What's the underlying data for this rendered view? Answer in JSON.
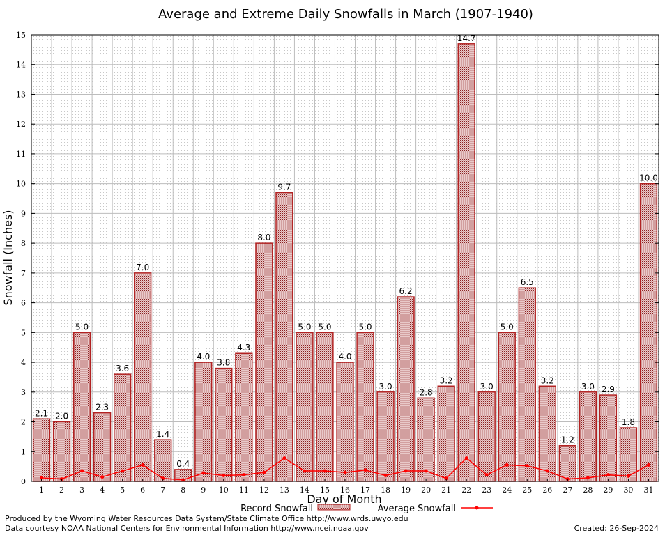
{
  "chart_data": {
    "type": "bar",
    "title": "Average and Extreme Daily Snowfalls in March (1907-1940)",
    "xlabel": "Day of Month",
    "ylabel": "Snowfall (Inches)",
    "ylim": [
      0,
      15
    ],
    "yticks": [
      "0",
      "1",
      "2",
      "3",
      "4",
      "5",
      "6",
      "7",
      "8",
      "9",
      "10",
      "11",
      "12",
      "13",
      "14",
      "15"
    ],
    "categories": [
      "1",
      "2",
      "3",
      "4",
      "5",
      "6",
      "7",
      "8",
      "9",
      "10",
      "11",
      "12",
      "13",
      "14",
      "15",
      "16",
      "17",
      "18",
      "19",
      "20",
      "21",
      "22",
      "23",
      "24",
      "25",
      "26",
      "27",
      "28",
      "29",
      "30",
      "31"
    ],
    "grid": true,
    "legend_position": "bottom",
    "series": [
      {
        "name": "Record Snowfall",
        "kind": "bar",
        "color": "#b22222",
        "values": [
          2.1,
          2.0,
          5.0,
          2.3,
          3.6,
          7.0,
          1.4,
          0.4,
          4.0,
          3.8,
          4.3,
          8.0,
          9.7,
          5.0,
          5.0,
          4.0,
          5.0,
          3.0,
          6.2,
          2.8,
          3.2,
          14.7,
          3.0,
          5.0,
          6.5,
          3.2,
          1.2,
          3.0,
          2.9,
          1.8,
          10.0
        ],
        "labels": [
          "2.1",
          "2.0",
          "5.0",
          "2.3",
          "3.6",
          "7.0",
          "1.4",
          "0.4",
          "4.0",
          "3.8",
          "4.3",
          "8.0",
          "9.7",
          "5.0",
          "5.0",
          "4.0",
          "5.0",
          "3.0",
          "6.2",
          "2.8",
          "3.2",
          "14.7",
          "3.0",
          "5.0",
          "6.5",
          "3.2",
          "1.2",
          "3.0",
          "2.9",
          "1.8",
          "10.0"
        ]
      },
      {
        "name": "Average Snowfall",
        "kind": "line",
        "color": "#ff0000",
        "values": [
          0.12,
          0.08,
          0.35,
          0.15,
          0.35,
          0.55,
          0.1,
          0.05,
          0.28,
          0.2,
          0.22,
          0.3,
          0.78,
          0.35,
          0.35,
          0.3,
          0.38,
          0.2,
          0.35,
          0.35,
          0.1,
          0.78,
          0.22,
          0.55,
          0.52,
          0.35,
          0.08,
          0.12,
          0.22,
          0.18,
          0.55
        ]
      }
    ]
  },
  "footer": {
    "producer": "Produced by the Wyoming Water Resources Data System/State Climate Office http://www.wrds.uwyo.edu",
    "courtesy": "Data courtesy NOAA National Centers for Environmental Information http://www.ncei.noaa.gov",
    "created": "Created:  26-Sep-2024"
  }
}
